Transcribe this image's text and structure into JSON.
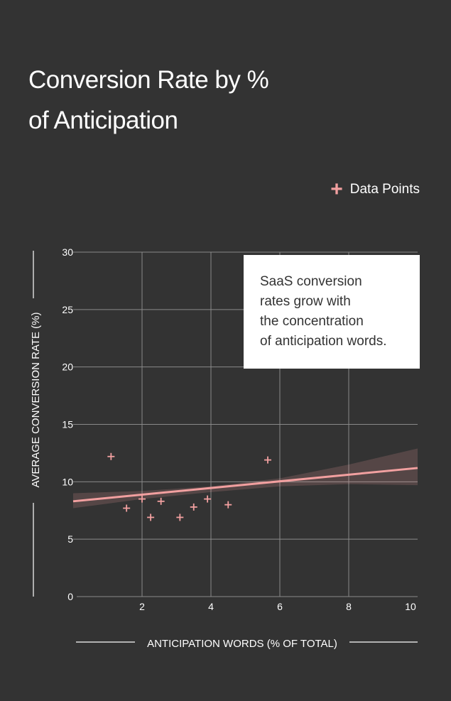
{
  "title_lines": [
    "Conversion Rate by %",
    "of Anticipation"
  ],
  "legend": {
    "label": "Data Points"
  },
  "callout_lines": [
    "SaaS conversion",
    "rates grow with",
    "the concentration",
    "of anticipation words."
  ],
  "colors": {
    "background": "#333333",
    "accent": "#f2a0a0",
    "grid": "#8a8a8a"
  },
  "chart_data": {
    "type": "scatter",
    "xlabel": "ANTICIPATION WORDS (% OF TOTAL)",
    "ylabel": "AVERAGE CONVERSION RATE (%)",
    "xlim": [
      0,
      10
    ],
    "ylim": [
      0,
      30
    ],
    "x_ticks": [
      2,
      4,
      6,
      8,
      10
    ],
    "y_ticks": [
      0,
      5,
      10,
      15,
      20,
      25,
      30
    ],
    "grid": true,
    "legend_position": "top-right",
    "series": [
      {
        "name": "Data Points",
        "marker": "plus",
        "points": [
          {
            "x": 1.1,
            "y": 12.2
          },
          {
            "x": 1.55,
            "y": 7.7
          },
          {
            "x": 2.0,
            "y": 8.5
          },
          {
            "x": 2.25,
            "y": 6.9
          },
          {
            "x": 2.55,
            "y": 8.3
          },
          {
            "x": 3.1,
            "y": 6.9
          },
          {
            "x": 3.5,
            "y": 7.8
          },
          {
            "x": 3.9,
            "y": 8.5
          },
          {
            "x": 4.5,
            "y": 8.0
          },
          {
            "x": 5.65,
            "y": 11.9
          }
        ]
      }
    ],
    "trend_line": {
      "x": [
        0,
        10
      ],
      "y": [
        8.3,
        11.2
      ]
    },
    "confidence_band": {
      "x": [
        0,
        2,
        4,
        6,
        8,
        10
      ],
      "lower": [
        7.7,
        8.5,
        9.1,
        9.6,
        9.8,
        9.7
      ],
      "upper": [
        9.0,
        9.2,
        9.6,
        10.3,
        11.5,
        12.9
      ]
    }
  }
}
